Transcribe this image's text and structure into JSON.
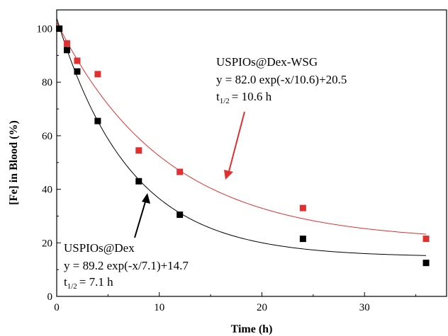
{
  "chart_data": {
    "type": "scatter",
    "xlabel": "Time (h)",
    "ylabel": "[Fe] in Blood (%)",
    "xlim": [
      0,
      38
    ],
    "ylim": [
      0,
      107
    ],
    "xticks": [
      0,
      10,
      20,
      30
    ],
    "yticks": [
      0,
      20,
      40,
      60,
      80,
      100
    ],
    "grid": false,
    "series": [
      {
        "name": "USPIOs@Dex-WSG",
        "color": "#e03030",
        "marker": "square",
        "x": [
          0.25,
          1,
          2,
          4,
          8,
          12,
          24,
          36
        ],
        "y": [
          100,
          94.5,
          88,
          83,
          54.5,
          46.5,
          33,
          21.5
        ],
        "fit": {
          "a": 82.0,
          "tau": 10.6,
          "c": 20.5
        },
        "annotation": {
          "name": "USPIOs@Dex-WSG",
          "equation": "y = 82.0 exp(-x/10.6)+20.5",
          "half_life_prefix": "t",
          "half_life_sub": "1/2",
          "half_life_value": "= 10.6 h"
        }
      },
      {
        "name": "USPIOs@Dex",
        "color": "#000000",
        "marker": "square",
        "x": [
          0.25,
          1,
          2,
          4,
          8,
          12,
          24,
          36
        ],
        "y": [
          100,
          92,
          84,
          65.5,
          43,
          30.5,
          21.5,
          12.5
        ],
        "fit": {
          "a": 89.2,
          "tau": 7.1,
          "c": 14.7
        },
        "annotation": {
          "name": "USPIOs@Dex",
          "equation": "y = 89.2 exp(-x/7.1)+14.7",
          "half_life_prefix": "t",
          "half_life_sub": "1/2",
          "half_life_value": "= 7.1 h"
        }
      }
    ]
  }
}
